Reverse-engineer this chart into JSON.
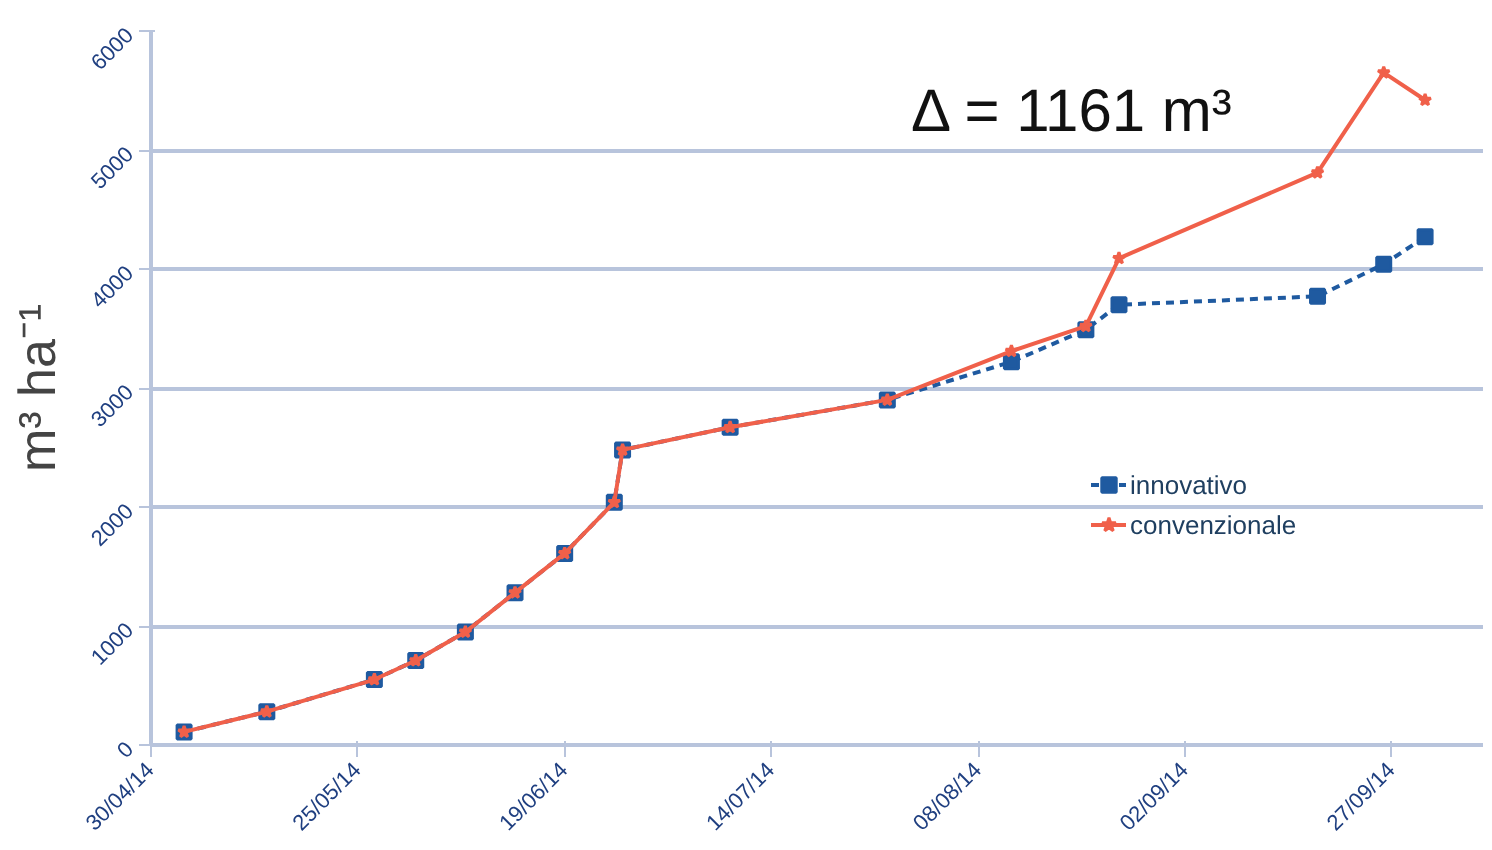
{
  "chart_data": {
    "type": "line",
    "ylabel": "m³ ha⁻¹",
    "annotations": [
      "Δ = 1161 m³"
    ],
    "xlim": [
      "2014-04-30",
      "2014-10-08"
    ],
    "ylim": [
      0,
      6000
    ],
    "xticks": [
      {
        "value": "2014-04-30",
        "label": "30/04/14"
      },
      {
        "value": "2014-05-25",
        "label": "25/05/14"
      },
      {
        "value": "2014-06-19",
        "label": "19/06/14"
      },
      {
        "value": "2014-07-14",
        "label": "14/07/14"
      },
      {
        "value": "2014-08-08",
        "label": "08/08/14"
      },
      {
        "value": "2014-09-02",
        "label": "02/09/14"
      },
      {
        "value": "2014-09-27",
        "label": "27/09/14"
      }
    ],
    "yticks": [
      0,
      1000,
      2000,
      3000,
      4000,
      5000,
      6000
    ],
    "grid": "y",
    "legend": "right",
    "series": [
      {
        "name": "innovativo",
        "color": "#1f5aa0",
        "marker": "square",
        "line_style": "dashed",
        "x": [
          "2014-05-04",
          "2014-05-14",
          "2014-05-27",
          "2014-06-01",
          "2014-06-07",
          "2014-06-13",
          "2014-06-19",
          "2014-06-25",
          "2014-06-26",
          "2014-07-09",
          "2014-07-28",
          "2014-08-12",
          "2014-08-21",
          "2014-08-25",
          "2014-09-18",
          "2014-09-26",
          "2014-10-01"
        ],
        "values": [
          110,
          280,
          550,
          710,
          950,
          1280,
          1610,
          2040,
          2480,
          2670,
          2900,
          3220,
          3490,
          3700,
          3770,
          4040,
          4270
        ]
      },
      {
        "name": "convenzionale",
        "color": "#f0604a",
        "marker": "star",
        "line_style": "solid",
        "x": [
          "2014-05-04",
          "2014-05-14",
          "2014-05-27",
          "2014-06-01",
          "2014-06-07",
          "2014-06-13",
          "2014-06-19",
          "2014-06-25",
          "2014-06-26",
          "2014-07-09",
          "2014-07-28",
          "2014-08-12",
          "2014-08-21",
          "2014-08-25",
          "2014-09-18",
          "2014-09-26",
          "2014-10-01"
        ],
        "values": [
          110,
          280,
          550,
          710,
          950,
          1280,
          1610,
          2040,
          2480,
          2670,
          2900,
          3310,
          3520,
          4090,
          4810,
          5650,
          5420
        ]
      }
    ]
  }
}
